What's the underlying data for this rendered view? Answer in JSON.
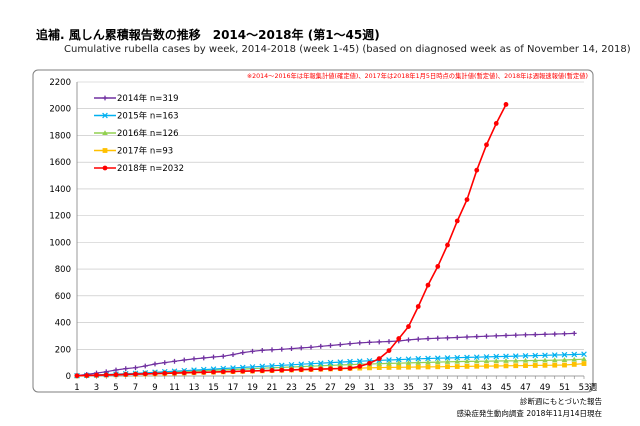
{
  "title": "追補. 風しん累積報告数の推移　2014～2018年 (第1～45週)",
  "subtitle": "Cumulative rubella cases by week, 2014-2018 (week 1-45)  (based on diagnosed week as of November 14, 2018)",
  "note": "※2014～2016年は年報集計値(確定値)、2017年は2018年1月5日時点の集計値(暫定値)、2018年は週報速報値(暫定値)",
  "footer": {
    "line1": "診断週にもとづいた報告",
    "line2": "感染症発生動向調査 2018年11月14日現在"
  },
  "chart_data": {
    "type": "line",
    "x_unit": "週",
    "x_ticks": [
      1,
      3,
      5,
      7,
      9,
      11,
      13,
      15,
      17,
      19,
      21,
      23,
      25,
      27,
      29,
      31,
      33,
      35,
      37,
      39,
      41,
      43,
      45,
      47,
      49,
      51,
      53
    ],
    "y_ticks": [
      0,
      200,
      400,
      600,
      800,
      1000,
      1200,
      1400,
      1600,
      1800,
      2000,
      2200
    ],
    "xlim": [
      1,
      53
    ],
    "ylim": [
      0,
      2200
    ],
    "grid": "horizontal",
    "legend_position": "top-left",
    "series": [
      {
        "name": "2014年 n=319",
        "color": "#7030a0",
        "marker": "plus",
        "values": [
          3,
          12,
          22,
          32,
          45,
          55,
          62,
          75,
          90,
          100,
          110,
          120,
          128,
          135,
          142,
          148,
          160,
          175,
          185,
          192,
          196,
          200,
          205,
          210,
          215,
          222,
          228,
          235,
          242,
          248,
          252,
          255,
          258,
          262,
          270,
          276,
          280,
          283,
          285,
          288,
          292,
          295,
          298,
          300,
          303,
          306,
          308,
          310,
          312,
          314,
          316,
          319
        ]
      },
      {
        "name": "2015年 n=163",
        "color": "#00b0f0",
        "marker": "cross",
        "values": [
          2,
          5,
          8,
          11,
          14,
          17,
          20,
          24,
          28,
          32,
          36,
          40,
          44,
          48,
          52,
          56,
          60,
          64,
          68,
          72,
          76,
          80,
          84,
          88,
          92,
          96,
          100,
          104,
          108,
          111,
          114,
          117,
          120,
          123,
          126,
          129,
          131,
          133,
          135,
          137,
          139,
          141,
          143,
          145,
          147,
          149,
          151,
          153,
          155,
          157,
          159,
          161,
          163
        ]
      },
      {
        "name": "2016年 n=126",
        "color": "#92d050",
        "marker": "triangle",
        "values": [
          1,
          4,
          7,
          10,
          13,
          16,
          19,
          22,
          25,
          28,
          31,
          34,
          37,
          40,
          43,
          46,
          49,
          52,
          55,
          58,
          61,
          64,
          67,
          70,
          73,
          76,
          79,
          82,
          85,
          88,
          90,
          92,
          94,
          96,
          98,
          100,
          102,
          104,
          106,
          108,
          109,
          110,
          111,
          112,
          113,
          114,
          115,
          116,
          117,
          118,
          120,
          123,
          126
        ]
      },
      {
        "name": "2017年 n=93",
        "color": "#ffc000",
        "marker": "square",
        "values": [
          1,
          3,
          5,
          7,
          9,
          11,
          13,
          15,
          17,
          19,
          21,
          23,
          25,
          27,
          29,
          31,
          33,
          35,
          37,
          39,
          41,
          43,
          45,
          47,
          49,
          51,
          53,
          55,
          57,
          59,
          61,
          63,
          64,
          65,
          66,
          67,
          68,
          69,
          70,
          71,
          72,
          73,
          74,
          75,
          76,
          77,
          78,
          79,
          80,
          81,
          82,
          87,
          93
        ]
      },
      {
        "name": "2018年 n=2032",
        "color": "#ff0000",
        "marker": "circle",
        "values": [
          2,
          4,
          6,
          8,
          10,
          12,
          14,
          16,
          18,
          20,
          22,
          24,
          26,
          28,
          30,
          32,
          34,
          36,
          38,
          40,
          42,
          44,
          46,
          48,
          50,
          52,
          54,
          56,
          58,
          72,
          95,
          130,
          190,
          280,
          370,
          520,
          680,
          820,
          980,
          1160,
          1320,
          1540,
          1730,
          1890,
          2032
        ]
      }
    ]
  }
}
